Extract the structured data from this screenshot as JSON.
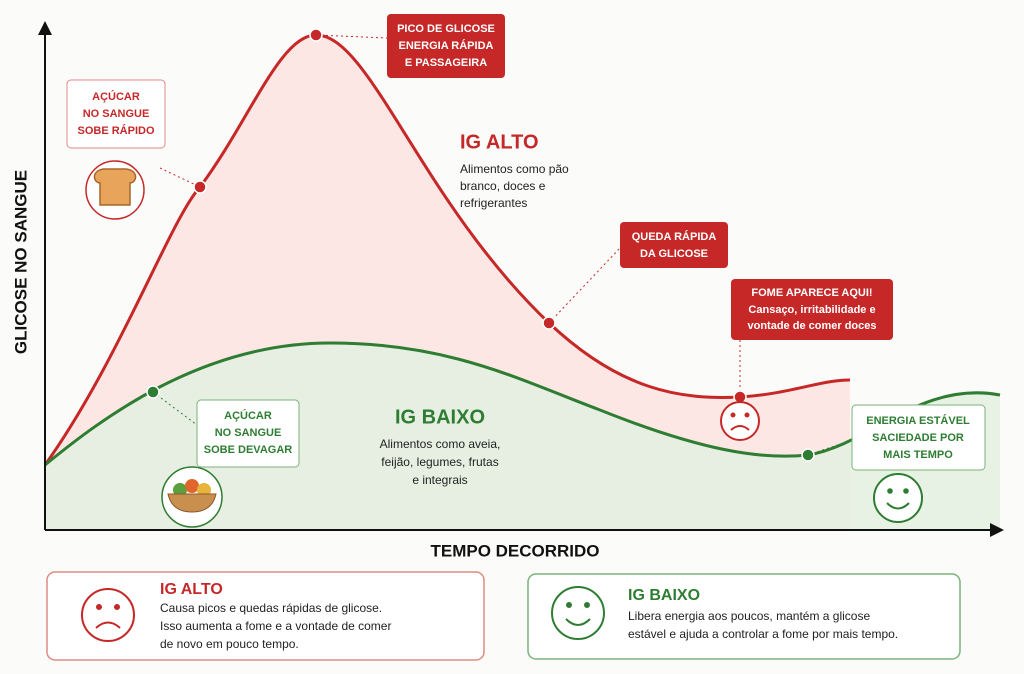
{
  "axes": {
    "y_label": "GLICOSE NO SANGUE",
    "x_label": "TEMPO DECORRIDO"
  },
  "high_gi": {
    "title": "IG ALTO",
    "description": [
      "Alimentos como pão",
      "branco, doces e",
      "refrigerantes"
    ]
  },
  "low_gi": {
    "title": "IG BAIXO",
    "description": [
      "Alimentos como aveia,",
      "feijão, legumes, frutas",
      "e integrais"
    ]
  },
  "callouts": [
    {
      "lines": [
        "AÇÚCAR",
        "NO SANGUE",
        "SOBE RÁPIDO"
      ]
    },
    {
      "lines": [
        "PICO DE GLICOSE",
        "ENERGIA RÁPIDA",
        "E PASSAGEIRA"
      ]
    },
    {
      "lines": [
        "QUEDA RÁPIDA",
        "DA GLICOSE"
      ]
    },
    {
      "title": "FOME APARECE AQUI!",
      "lines": [
        "Cansaço, irritabilidade e",
        "vontade de comer doces"
      ]
    },
    {
      "lines": [
        "AÇÚCAR",
        "NO SANGUE",
        "SOBE DEVAGAR"
      ]
    },
    {
      "lines": [
        "ENERGIA ESTÁVEL",
        "SACIEDADE POR",
        "MAIS TEMPO"
      ]
    }
  ],
  "summary": [
    {
      "title": "IG ALTO",
      "lines": [
        "Causa picos e quedas rápidas de glicose.",
        "Isso aumenta a fome e a vontade de comer",
        "de novo em pouco tempo."
      ]
    },
    {
      "title": "IG BAIXO",
      "lines": [
        "Libera energia aos poucos, mantém a glicose",
        "estável e ajuda a controlar a fome por mais tempo."
      ]
    }
  ]
}
